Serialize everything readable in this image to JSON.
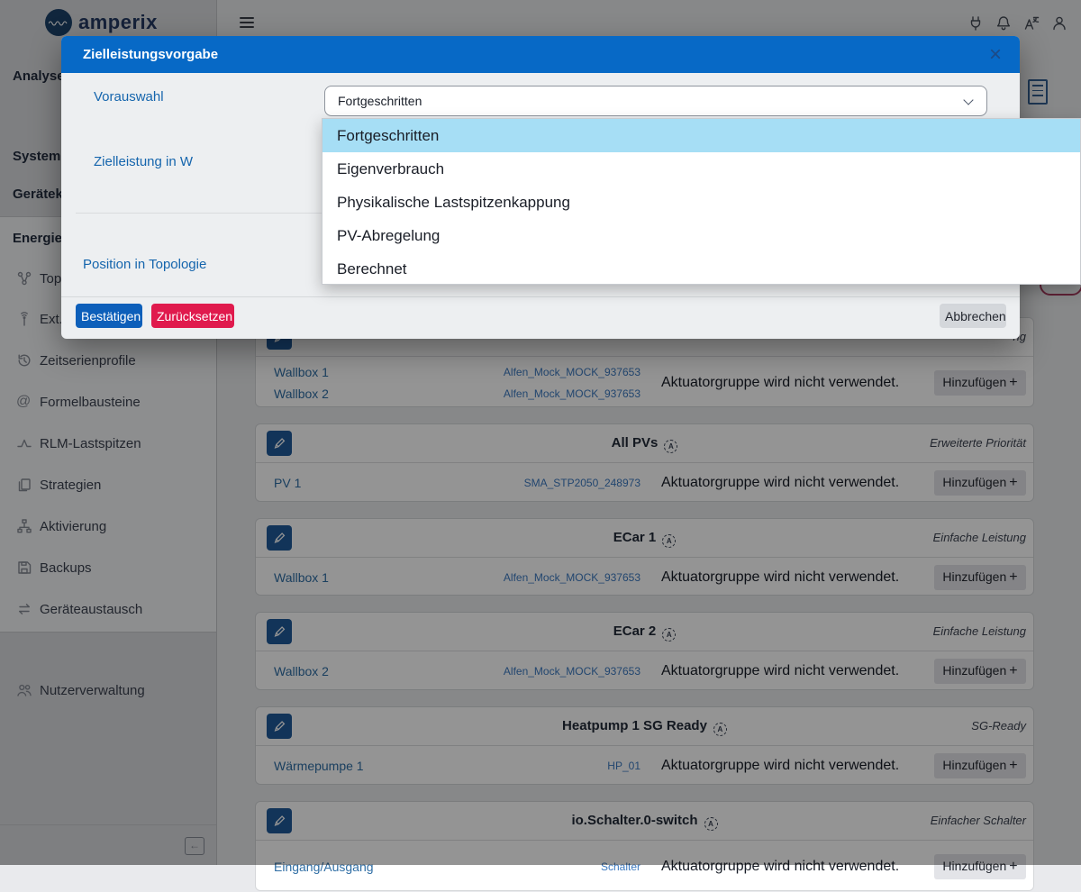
{
  "brand": {
    "name": "amperix"
  },
  "header": {
    "icons": [
      {
        "name": "power-plug-icon"
      },
      {
        "name": "notification-bell-icon"
      },
      {
        "name": "translate-icon"
      },
      {
        "name": "user-icon"
      }
    ]
  },
  "sidebar": {
    "sections": [
      {
        "label": "Analyse"
      },
      {
        "label": "Systeme"
      },
      {
        "label": "Gerätek"
      },
      {
        "label": "Energie"
      }
    ],
    "items": [
      {
        "icon": "topology",
        "label": "Top"
      },
      {
        "icon": "antenna",
        "label": "Ext."
      },
      {
        "icon": "history",
        "label": "Zeitserienprofile"
      },
      {
        "icon": "at",
        "label": "Formelbausteine"
      },
      {
        "icon": "peak",
        "label": "RLM-Lastspitzen"
      },
      {
        "icon": "layers",
        "label": "Strategien"
      },
      {
        "icon": "hierarchy",
        "label": "Aktivierung"
      },
      {
        "icon": "save",
        "label": "Backups"
      },
      {
        "icon": "swap",
        "label": "Geräteaustausch"
      }
    ],
    "bottom_items": [
      {
        "icon": "users",
        "label": "Nutzerverwaltung"
      }
    ]
  },
  "modal": {
    "title": "Zielleistungsvorgabe",
    "close_label": "×",
    "fields": {
      "preselect": "Vorauswahl",
      "target_power": "Zielleistung in W",
      "position": "Position in Topologie"
    },
    "dropdown": {
      "value": "Fortgeschritten",
      "highlighted_index": 0,
      "options": [
        "Fortgeschritten",
        "Eigenverbrauch",
        "Physikalische Lastspitzenkappung",
        "PV-Abregelung",
        "Berechnet"
      ]
    },
    "buttons": {
      "confirm": "Bestätigen",
      "reset": "Zurücksetzen",
      "cancel": "Abbrechen"
    }
  },
  "content": {
    "message": "Aktuatorgruppe wird nicht verwendet.",
    "add_label": "Hinzufügen",
    "plus": "+",
    "cards": [
      {
        "title": "",
        "right_label": "ng",
        "rows": [
          {
            "name": "Wallbox 1",
            "device": "Alfen_Mock_MOCK_937653"
          },
          {
            "name": "Wallbox 2",
            "device": "Alfen_Mock_MOCK_937653"
          }
        ]
      },
      {
        "title": "All PVs",
        "right_label": "Erweiterte Priorität",
        "rows": [
          {
            "name": "PV 1",
            "device": "SMA_STP2050_248973"
          }
        ]
      },
      {
        "title": "ECar 1",
        "right_label": "Einfache Leistung",
        "rows": [
          {
            "name": "Wallbox 1",
            "device": "Alfen_Mock_MOCK_937653"
          }
        ]
      },
      {
        "title": "ECar 2",
        "right_label": "Einfache Leistung",
        "rows": [
          {
            "name": "Wallbox 2",
            "device": "Alfen_Mock_MOCK_937653"
          }
        ]
      },
      {
        "title": "Heatpump 1 SG Ready",
        "right_label": "SG-Ready",
        "rows": [
          {
            "name": "Wärmepumpe 1",
            "device": "HP_01"
          }
        ]
      },
      {
        "title": "io.Schalter.0-switch",
        "right_label": "Einfacher Schalter",
        "rows": [
          {
            "name": "Eingang/Ausgang",
            "device": "Schalter"
          }
        ]
      }
    ]
  },
  "colors": {
    "modal_header_blue": "#0769c6",
    "confirm_blue": "#0d5fba",
    "reset_red": "#e01a4d",
    "pencil_blue": "#1f5a99",
    "link_blue": "#2e6da4",
    "dropdown_highlight": "#a6def5"
  }
}
